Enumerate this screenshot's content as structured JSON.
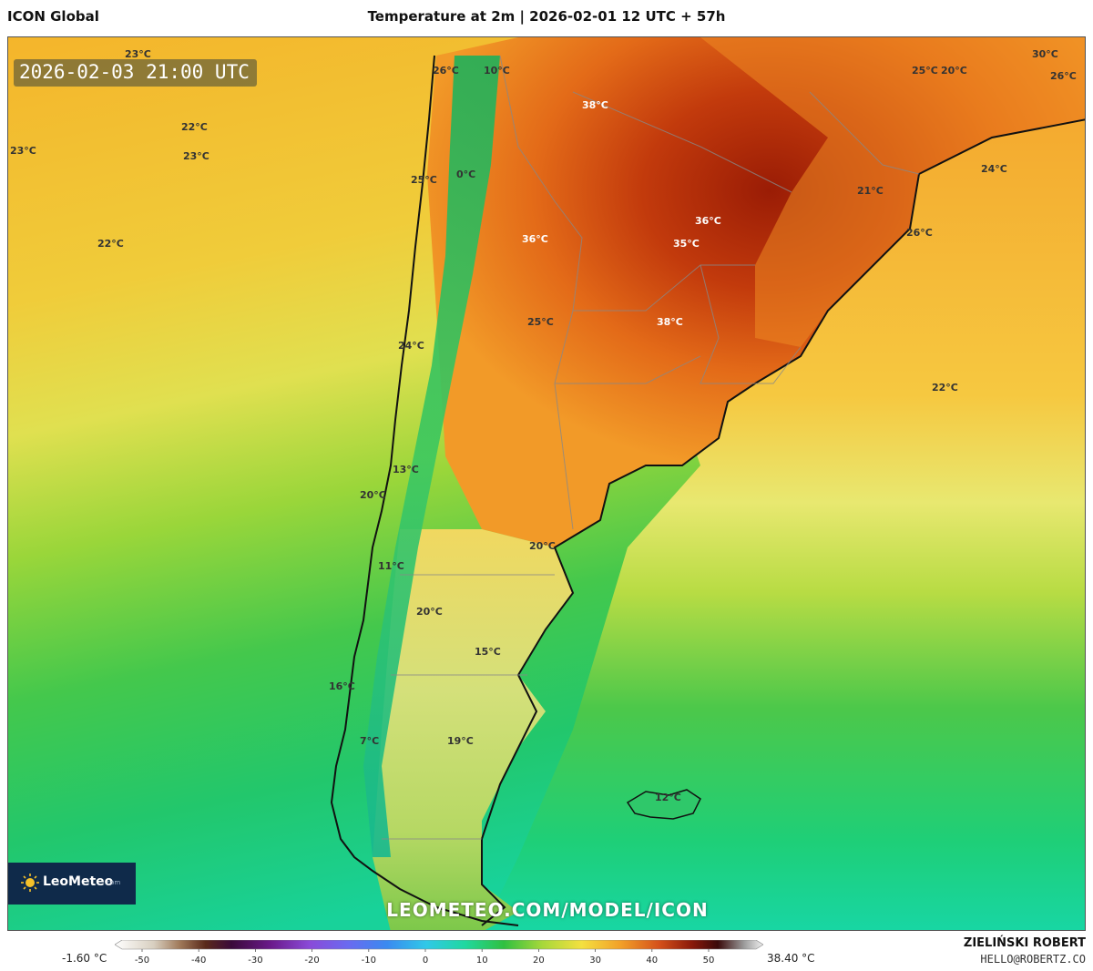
{
  "header": {
    "model": "ICON Global",
    "run": "Temperature at 2m | 2026-02-01 12 UTC + 57h"
  },
  "map": {
    "valid_time": "2026-02-03 21:00 UTC",
    "labels": [
      "23°C",
      "23°C",
      "22°C",
      "23°C",
      "22°C",
      "26°C",
      "10°C",
      "38°C",
      "30°C",
      "25°C",
      "20°C",
      "26°C",
      "0°C",
      "25°C",
      "24°C",
      "21°C",
      "36°C",
      "36°C",
      "35°C",
      "26°C",
      "25°C",
      "38°C",
      "24°C",
      "22°C",
      "13°C",
      "20°C",
      "20°C",
      "11°C",
      "20°C",
      "15°C",
      "16°C",
      "19°C",
      "7°C",
      "12°C"
    ],
    "logo_text": "LeoMeteo",
    "logo_sub": ".com",
    "url": "LEOMETEO.COM/MODEL/ICON",
    "colors": {
      "ocean_warm": "#f2b52a",
      "ocean_mild": "#c9dc3c",
      "ocean_cool": "#3ccf55",
      "ocean_cold": "#18d6a0",
      "land_hot": "#b82808",
      "land_warm": "#e8661a",
      "andes": "#2fbf60",
      "coast": "#111111"
    }
  },
  "legend": {
    "min_label": "-1.60 °C",
    "max_label": "38.40 °C",
    "ticks": [
      "-50",
      "-40",
      "-30",
      "-20",
      "-10",
      "0",
      "10",
      "20",
      "30",
      "40",
      "50"
    ]
  },
  "credits": {
    "name": "ZIELIŃSKI ROBERT",
    "email": "HELLO@ROBERTZ.CO"
  }
}
